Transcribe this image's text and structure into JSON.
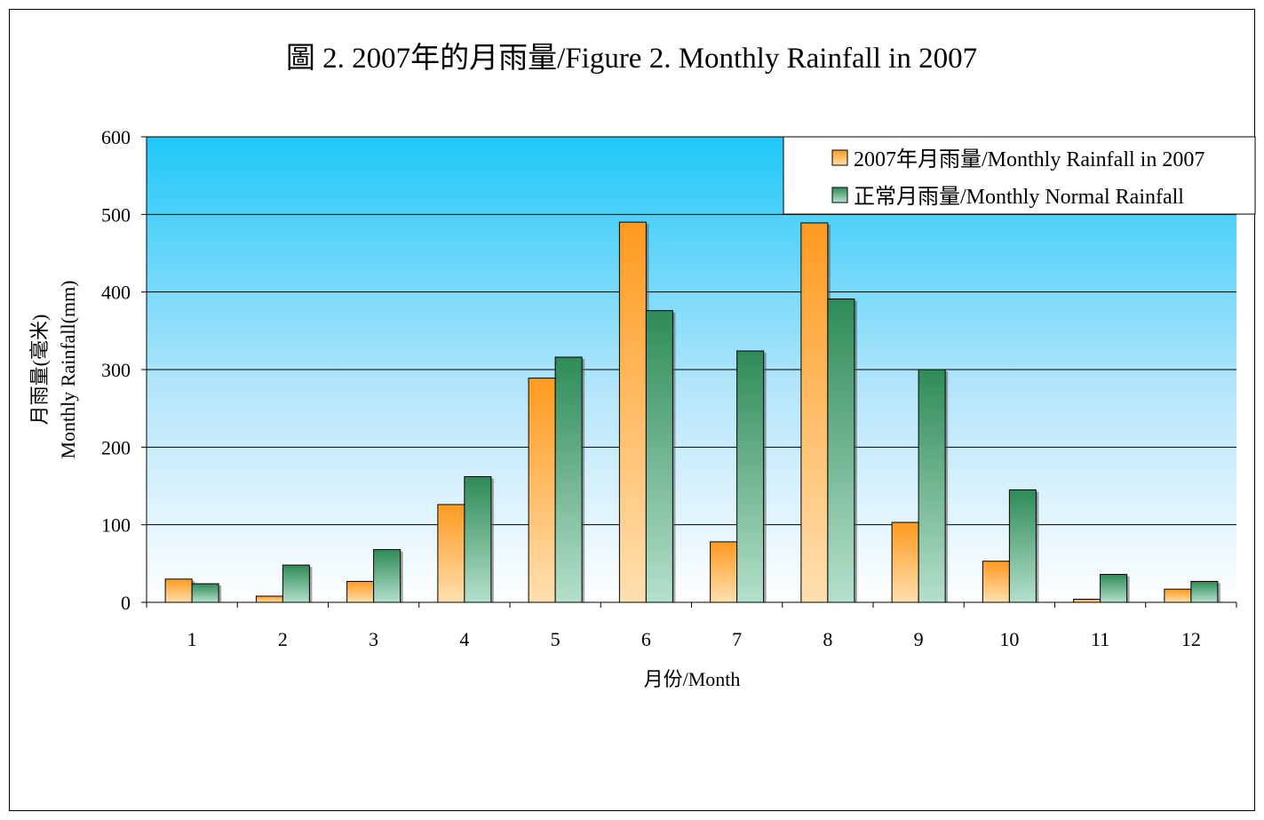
{
  "chart_data": {
    "type": "bar",
    "title": "圖 2. 2007年的月雨量/Figure 2. Monthly Rainfall in 2007",
    "xlabel": "月份/Month",
    "ylabel_line1": "月雨量(毫米)",
    "ylabel_line2": "Monthly Rainfall(mm)",
    "categories": [
      "1",
      "2",
      "3",
      "4",
      "5",
      "6",
      "7",
      "8",
      "9",
      "10",
      "11",
      "12"
    ],
    "ylim": [
      0,
      600
    ],
    "yticks": [
      "0",
      "100",
      "200",
      "300",
      "400",
      "500",
      "600"
    ],
    "grid": true,
    "legend_position": "top-right",
    "series": [
      {
        "name": "2007年月雨量/Monthly Rainfall in 2007",
        "values": [
          30,
          8,
          27,
          126,
          289,
          490,
          78,
          489,
          103,
          53,
          4,
          17
        ],
        "color_top": "#ff9a1f",
        "color_bottom": "#ffe0b0"
      },
      {
        "name": "正常月雨量/Monthly Normal Rainfall",
        "values": [
          24,
          48,
          68,
          162,
          316,
          376,
          324,
          391,
          300,
          145,
          36,
          27
        ],
        "color_top": "#2e8b57",
        "color_bottom": "#b5e0cc"
      }
    ],
    "plot_background_top": "#1ec8f8",
    "plot_background_bottom": "#ffffff"
  }
}
